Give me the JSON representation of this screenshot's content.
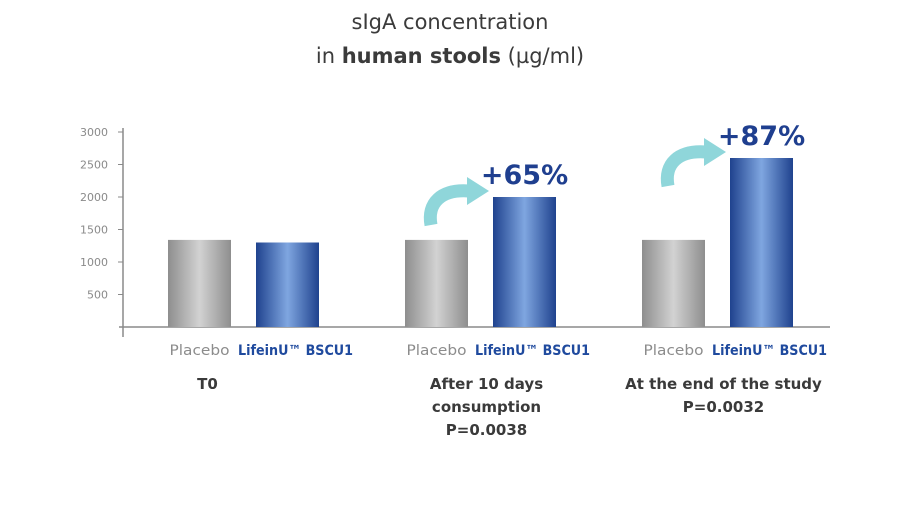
{
  "chart_data": {
    "type": "bar",
    "title_line1": "sIgA concentration",
    "title_line2_prefix": "in ",
    "title_line2_bold": "human stools",
    "title_line2_suffix": " (µg/ml)",
    "ylim": [
      0,
      3000
    ],
    "yticks": [
      500,
      1000,
      1500,
      2000,
      2500,
      3000
    ],
    "grid": false,
    "groups": [
      {
        "label_lines": [
          "T0"
        ],
        "bars": [
          {
            "name": "Placebo",
            "value": 1340
          },
          {
            "name": "LifeinU™ BSCU1",
            "value": 1300
          }
        ],
        "annotation": ""
      },
      {
        "label_lines": [
          "After 10 days",
          "consumption",
          "P=0.0038"
        ],
        "bars": [
          {
            "name": "Placebo",
            "value": 1340
          },
          {
            "name": "LifeinU™ BSCU1",
            "value": 2000
          }
        ],
        "annotation": "+65%"
      },
      {
        "label_lines": [
          "At the end of the study",
          "P=0.0032"
        ],
        "bars": [
          {
            "name": "Placebo",
            "value": 1340
          },
          {
            "name": "LifeinU™ BSCU1",
            "value": 2600
          }
        ],
        "annotation": "+87%"
      }
    ],
    "colors": {
      "placebo": "#9a9a9a",
      "product": "#2a55a8",
      "product_label": "#1f4a9e",
      "placebo_label": "#8c8c8c",
      "annotation": "#1f3f8f",
      "arrow": "#8fd6da",
      "axis": "#8a8a8a",
      "group_label": "#3a3a3a"
    }
  }
}
